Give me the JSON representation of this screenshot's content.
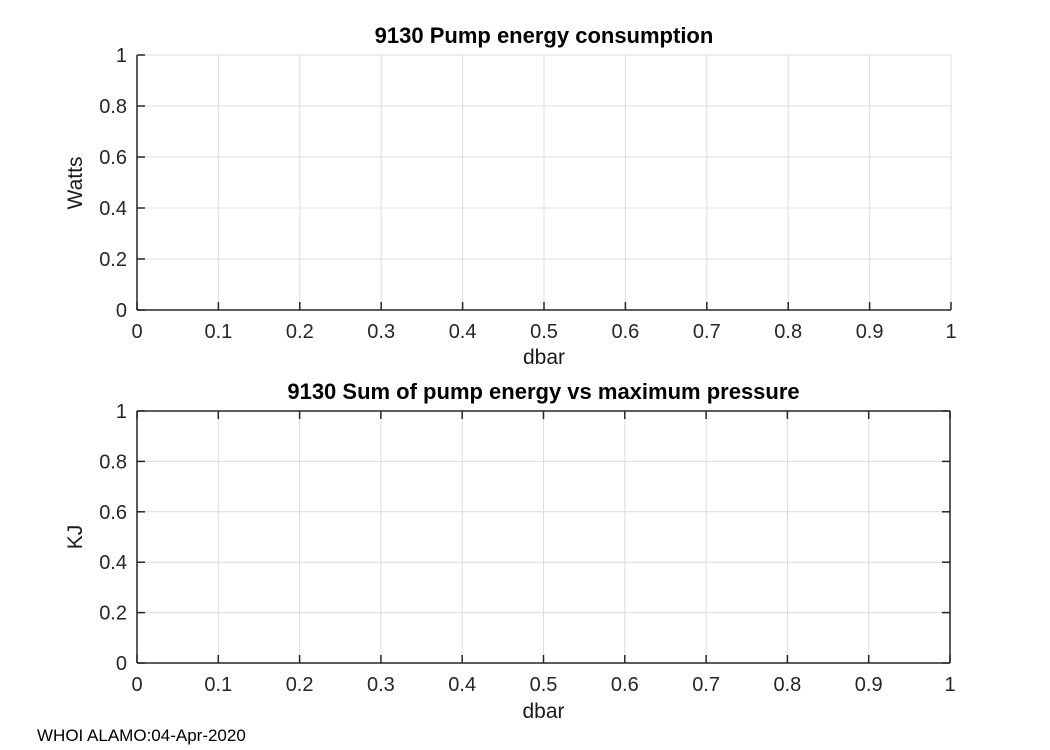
{
  "figure": {
    "background": "#ffffff",
    "watermark": "WHOI ALAMO:04-Apr-2020"
  },
  "colors": {
    "axis": "#262626",
    "grid": "#dcdcdc",
    "tick_label": "#262626",
    "title": "#000000"
  },
  "chart_data": [
    {
      "type": "line",
      "title": "9130 Pump energy consumption",
      "xlabel": "dbar",
      "ylabel": "Watts",
      "xlim": [
        0,
        1
      ],
      "ylim": [
        0,
        1
      ],
      "xticks": [
        0,
        0.1,
        0.2,
        0.3,
        0.4,
        0.5,
        0.6,
        0.7,
        0.8,
        0.9,
        1
      ],
      "xtick_labels": [
        "0",
        "0.1",
        "0.2",
        "0.3",
        "0.4",
        "0.5",
        "0.6",
        "0.7",
        "0.8",
        "0.9",
        "1"
      ],
      "yticks": [
        0,
        0.2,
        0.4,
        0.6,
        0.8,
        1
      ],
      "ytick_labels": [
        "0",
        "0.2",
        "0.4",
        "0.6",
        "0.8",
        "1"
      ],
      "grid": true,
      "box": false,
      "series": []
    },
    {
      "type": "line",
      "title": "9130 Sum of pump energy vs maximum pressure",
      "xlabel": "dbar",
      "ylabel": "KJ",
      "xlim": [
        0,
        1
      ],
      "ylim": [
        0,
        1
      ],
      "xticks": [
        0,
        0.1,
        0.2,
        0.3,
        0.4,
        0.5,
        0.6,
        0.7,
        0.8,
        0.9,
        1
      ],
      "xtick_labels": [
        "0",
        "0.1",
        "0.2",
        "0.3",
        "0.4",
        "0.5",
        "0.6",
        "0.7",
        "0.8",
        "0.9",
        "1"
      ],
      "yticks": [
        0,
        0.2,
        0.4,
        0.6,
        0.8,
        1
      ],
      "ytick_labels": [
        "0",
        "0.2",
        "0.4",
        "0.6",
        "0.8",
        "1"
      ],
      "grid": true,
      "box": true,
      "series": []
    }
  ]
}
